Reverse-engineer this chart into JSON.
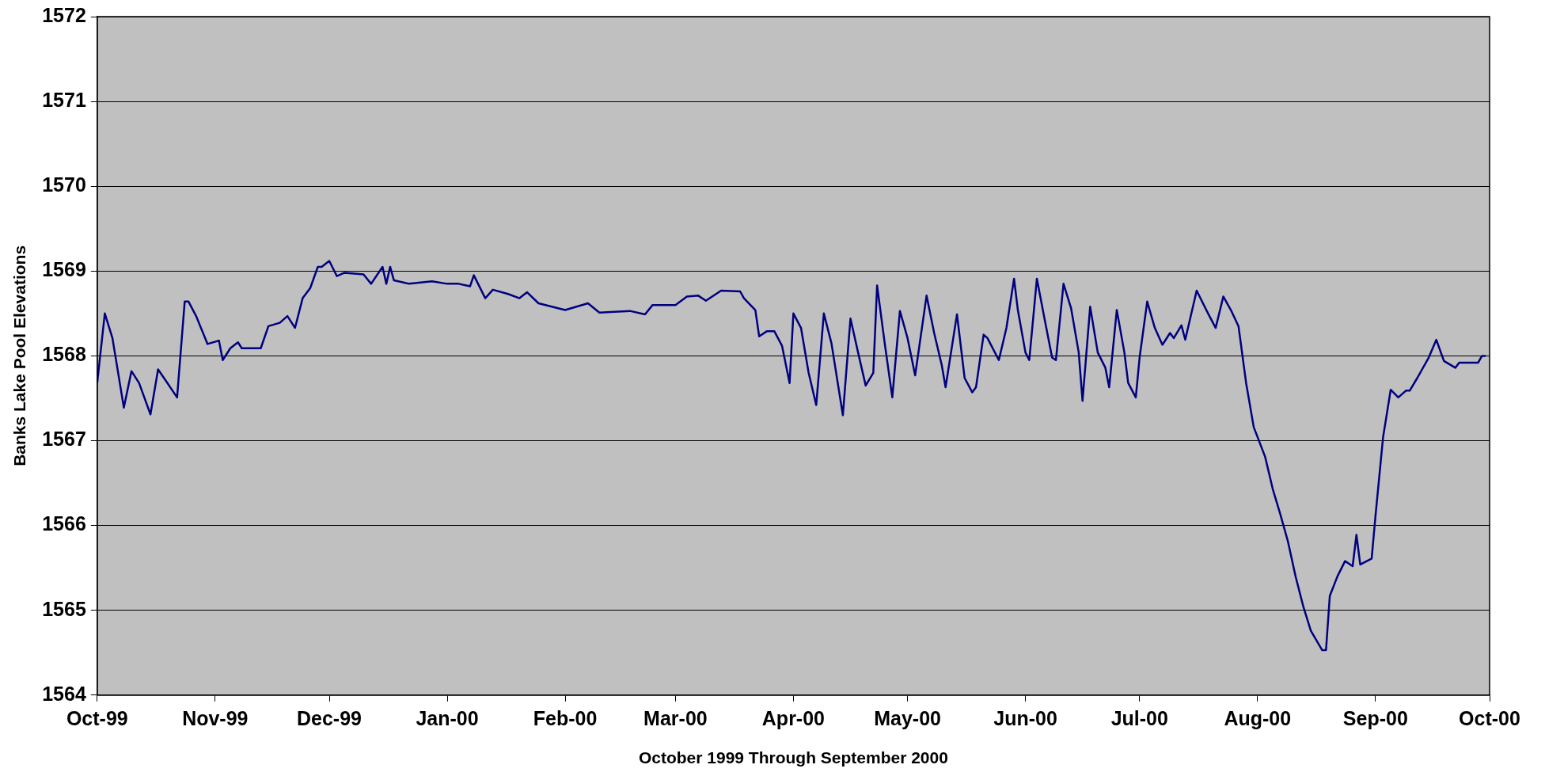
{
  "chart_data": {
    "type": "line",
    "xlabel": "October 1999 Through September 2000",
    "ylabel": "Banks Lake Pool Elevations",
    "x": [
      "1999-10-01",
      "1999-10-03",
      "1999-10-05",
      "1999-10-08",
      "1999-10-10",
      "1999-10-12",
      "1999-10-15",
      "1999-10-17",
      "1999-10-19",
      "1999-10-22",
      "1999-10-24",
      "1999-10-25",
      "1999-10-27",
      "1999-10-30",
      "1999-11-02",
      "1999-11-03",
      "1999-11-05",
      "1999-11-07",
      "1999-11-08",
      "1999-11-13",
      "1999-11-15",
      "1999-11-18",
      "1999-11-20",
      "1999-11-22",
      "1999-11-24",
      "1999-11-26",
      "1999-11-28",
      "1999-11-29",
      "1999-12-01",
      "1999-12-03",
      "1999-12-05",
      "1999-12-10",
      "1999-12-12",
      "1999-12-15",
      "1999-12-16",
      "1999-12-17",
      "1999-12-18",
      "1999-12-22",
      "1999-12-28",
      "2000-01-01",
      "2000-01-04",
      "2000-01-07",
      "2000-01-08",
      "2000-01-11",
      "2000-01-13",
      "2000-01-17",
      "2000-01-20",
      "2000-01-22",
      "2000-01-25",
      "2000-02-01",
      "2000-02-07",
      "2000-02-10",
      "2000-02-18",
      "2000-02-22",
      "2000-02-24",
      "2000-03-01",
      "2000-03-04",
      "2000-03-07",
      "2000-03-09",
      "2000-03-13",
      "2000-03-18",
      "2000-03-19",
      "2000-03-22",
      "2000-03-23",
      "2000-03-25",
      "2000-03-27",
      "2000-03-29",
      "2000-03-31",
      "2000-04-01",
      "2000-04-03",
      "2000-04-05",
      "2000-04-07",
      "2000-04-09",
      "2000-04-11",
      "2000-04-14",
      "2000-04-16",
      "2000-04-18",
      "2000-04-20",
      "2000-04-22",
      "2000-04-23",
      "2000-04-25",
      "2000-04-27",
      "2000-04-29",
      "2000-05-01",
      "2000-05-03",
      "2000-05-06",
      "2000-05-08",
      "2000-05-10",
      "2000-05-11",
      "2000-05-14",
      "2000-05-16",
      "2000-05-18",
      "2000-05-19",
      "2000-05-21",
      "2000-05-22",
      "2000-05-25",
      "2000-05-27",
      "2000-05-29",
      "2000-05-30",
      "2000-06-01",
      "2000-06-02",
      "2000-06-04",
      "2000-06-06",
      "2000-06-08",
      "2000-06-09",
      "2000-06-11",
      "2000-06-13",
      "2000-06-15",
      "2000-06-16",
      "2000-06-18",
      "2000-06-20",
      "2000-06-22",
      "2000-06-23",
      "2000-06-25",
      "2000-06-27",
      "2000-06-28",
      "2000-06-30",
      "2000-07-01",
      "2000-07-03",
      "2000-07-05",
      "2000-07-07",
      "2000-07-09",
      "2000-07-10",
      "2000-07-12",
      "2000-07-13",
      "2000-07-16",
      "2000-07-19",
      "2000-07-21",
      "2000-07-23",
      "2000-07-25",
      "2000-07-27",
      "2000-07-29",
      "2000-07-31",
      "2000-08-03",
      "2000-08-05",
      "2000-08-07",
      "2000-08-09",
      "2000-08-11",
      "2000-08-13",
      "2000-08-15",
      "2000-08-18",
      "2000-08-19",
      "2000-08-20",
      "2000-08-22",
      "2000-08-24",
      "2000-08-26",
      "2000-08-27",
      "2000-08-28",
      "2000-08-31",
      "2000-09-01",
      "2000-09-03",
      "2000-09-05",
      "2000-09-07",
      "2000-09-09",
      "2000-09-10",
      "2000-09-12",
      "2000-09-15",
      "2000-09-17",
      "2000-09-19",
      "2000-09-22",
      "2000-09-23",
      "2000-09-28",
      "2000-09-29",
      "2000-09-30"
    ],
    "series": [
      {
        "color": "#000080",
        "values": [
          1567.68,
          1568.5,
          1568.21,
          1567.39,
          1567.82,
          1567.68,
          1567.31,
          1567.84,
          1567.71,
          1567.51,
          1568.64,
          1568.64,
          1568.47,
          1568.14,
          1568.18,
          1567.95,
          1568.09,
          1568.16,
          1568.09,
          1568.09,
          1568.35,
          1568.39,
          1568.47,
          1568.33,
          1568.68,
          1568.8,
          1569.05,
          1569.05,
          1569.12,
          1568.94,
          1568.98,
          1568.96,
          1568.85,
          1569.05,
          1568.85,
          1569.05,
          1568.89,
          1568.85,
          1568.88,
          1568.85,
          1568.85,
          1568.82,
          1568.95,
          1568.68,
          1568.78,
          1568.73,
          1568.68,
          1568.75,
          1568.62,
          1568.54,
          1568.62,
          1568.51,
          1568.53,
          1568.49,
          1568.6,
          1568.6,
          1568.7,
          1568.71,
          1568.65,
          1568.77,
          1568.76,
          1568.68,
          1568.54,
          1568.23,
          1568.29,
          1568.29,
          1568.12,
          1567.68,
          1568.5,
          1568.33,
          1567.8,
          1567.42,
          1568.5,
          1568.15,
          1567.3,
          1568.44,
          1568.04,
          1567.65,
          1567.8,
          1568.83,
          1568.15,
          1567.51,
          1568.53,
          1568.21,
          1567.77,
          1568.71,
          1568.27,
          1567.89,
          1567.63,
          1568.49,
          1567.74,
          1567.57,
          1567.63,
          1568.25,
          1568.21,
          1567.95,
          1568.33,
          1568.91,
          1568.54,
          1568.04,
          1567.95,
          1568.91,
          1568.44,
          1567.98,
          1567.95,
          1568.85,
          1568.56,
          1568.04,
          1567.47,
          1568.58,
          1568.04,
          1567.86,
          1567.63,
          1568.54,
          1568.04,
          1567.68,
          1567.51,
          1567.98,
          1568.64,
          1568.33,
          1568.13,
          1568.27,
          1568.21,
          1568.36,
          1568.19,
          1568.77,
          1568.5,
          1568.33,
          1568.7,
          1568.54,
          1568.35,
          1567.68,
          1567.16,
          1566.81,
          1566.43,
          1566.13,
          1565.81,
          1565.4,
          1565.05,
          1564.76,
          1564.53,
          1564.53,
          1565.17,
          1565.4,
          1565.58,
          1565.52,
          1565.89,
          1565.54,
          1565.61,
          1566.11,
          1567.04,
          1567.6,
          1567.51,
          1567.59,
          1567.59,
          1567.74,
          1567.98,
          1568.19,
          1567.94,
          1567.86,
          1567.92,
          1567.92,
          1568.0,
          1568.0
        ]
      }
    ],
    "xlim": [
      "1999-10-01",
      "2000-10-01"
    ],
    "xticks": [
      {
        "value": "1999-10-01",
        "label": "Oct-99"
      },
      {
        "value": "1999-11-01",
        "label": "Nov-99"
      },
      {
        "value": "1999-12-01",
        "label": "Dec-99"
      },
      {
        "value": "2000-01-01",
        "label": "Jan-00"
      },
      {
        "value": "2000-02-01",
        "label": "Feb-00"
      },
      {
        "value": "2000-03-01",
        "label": "Mar-00"
      },
      {
        "value": "2000-04-01",
        "label": "Apr-00"
      },
      {
        "value": "2000-05-01",
        "label": "May-00"
      },
      {
        "value": "2000-06-01",
        "label": "Jun-00"
      },
      {
        "value": "2000-07-01",
        "label": "Jul-00"
      },
      {
        "value": "2000-08-01",
        "label": "Aug-00"
      },
      {
        "value": "2000-09-01",
        "label": "Sep-00"
      },
      {
        "value": "2000-10-01",
        "label": "Oct-00"
      }
    ],
    "ylim": [
      1564,
      1572
    ],
    "yticks": [
      1564,
      1565,
      1566,
      1567,
      1568,
      1569,
      1570,
      1571,
      1572
    ],
    "grid": "y",
    "legend": false,
    "marker": "none",
    "line_style": "solid"
  }
}
